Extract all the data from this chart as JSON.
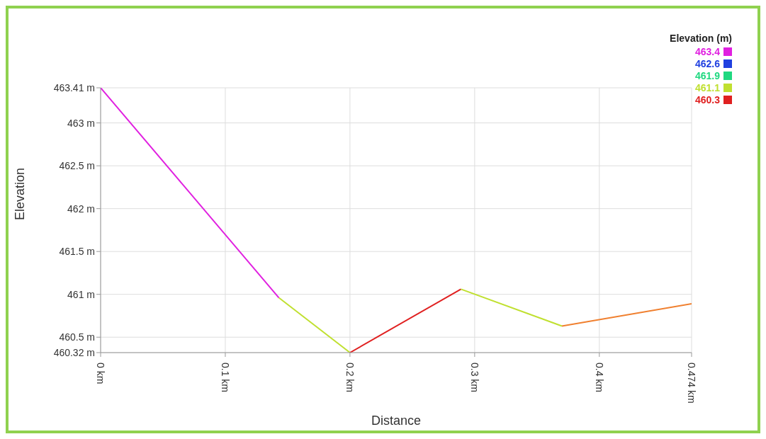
{
  "chart_data": {
    "type": "line",
    "xlabel": "Distance",
    "ylabel": "Elevation",
    "legend_title": "Elevation (m)",
    "legend": "top right",
    "grid": true,
    "line_style": "solid",
    "marker": "none",
    "xlim": [
      0,
      0.474
    ],
    "xticks": [
      {
        "value": 0,
        "label": "0 km"
      },
      {
        "value": 0.1,
        "label": "0.1 km"
      },
      {
        "value": 0.2,
        "label": "0.2 km"
      },
      {
        "value": 0.3,
        "label": "0.3 km"
      },
      {
        "value": 0.4,
        "label": "0.4 km"
      },
      {
        "value": 0.474,
        "label": "0.474 km"
      }
    ],
    "ylim": [
      460.32,
      463.41
    ],
    "yticks": [
      {
        "value": 460.32,
        "label": "460.32 m"
      },
      {
        "value": 460.5,
        "label": "460.5 m"
      },
      {
        "value": 461,
        "label": "461 m"
      },
      {
        "value": 461.5,
        "label": "461.5 m"
      },
      {
        "value": 462,
        "label": "462 m"
      },
      {
        "value": 462.5,
        "label": "462.5 m"
      },
      {
        "value": 463,
        "label": "463 m"
      },
      {
        "value": 463.41,
        "label": "463.41 m"
      }
    ],
    "series": [
      {
        "name": "463.4",
        "color": "#e020e0",
        "x": [
          0,
          0.143
        ],
        "values": [
          463.41,
          460.96
        ]
      },
      {
        "name": "462.6",
        "color": "#2040e0"
      },
      {
        "name": "461.9",
        "color": "#20d880"
      },
      {
        "name": "461.1",
        "color": "#c0e030",
        "x": [
          0.143,
          0.2
        ],
        "values": [
          460.96,
          460.32
        ]
      },
      {
        "name": "460.3",
        "color": "#e02020",
        "x": [
          0.2,
          0.289
        ],
        "values": [
          460.32,
          461.06
        ]
      },
      {
        "color": "#c0e030",
        "x": [
          0.289,
          0.37
        ],
        "values": [
          461.06,
          460.63
        ]
      },
      {
        "color": "#f08030",
        "x": [
          0.37,
          0.474
        ],
        "values": [
          460.63,
          460.89
        ]
      }
    ]
  }
}
